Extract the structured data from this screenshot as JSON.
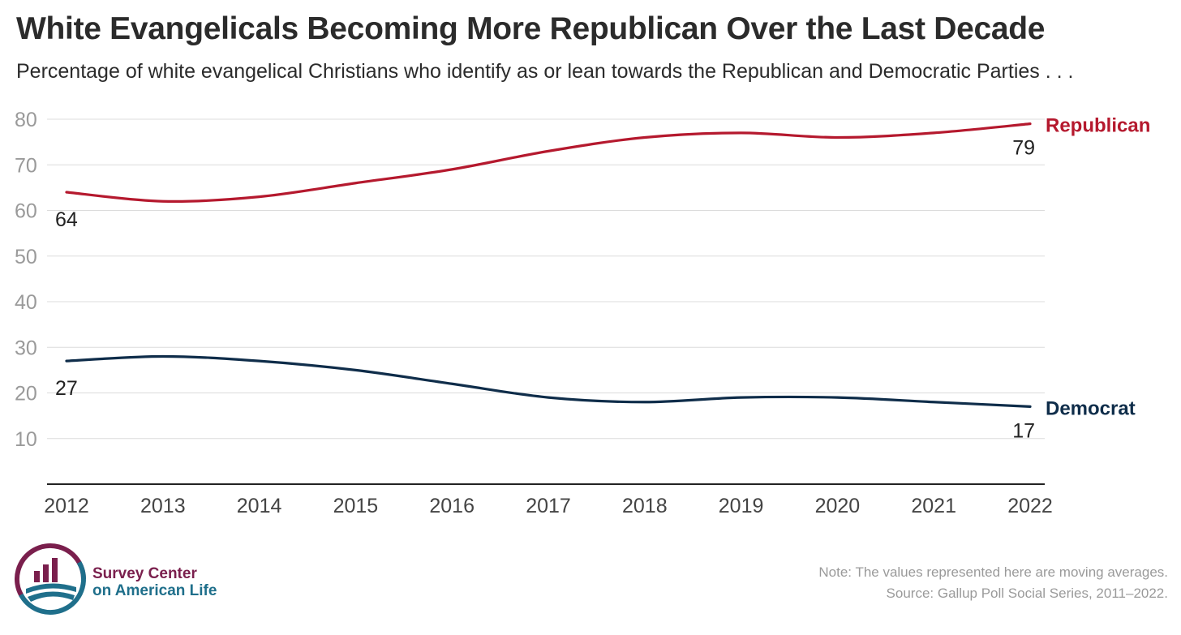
{
  "title": "White Evangelicals Becoming More Republican Over the Last Decade",
  "subtitle": "Percentage of white evangelical Christians who identify as or lean towards the Republican and Democratic Parties . . .",
  "note": "Note: The values represented here are moving averages.",
  "source": "Source: Gallup Poll Social Series, 2011–2022.",
  "logo": {
    "line1": "Survey Center",
    "line2": "on American Life"
  },
  "colors": {
    "republican": "#b5192e",
    "democrat": "#0f2d4a",
    "grid": "#dcdcdc",
    "axis": "#222222",
    "tick": "#9a9a9a"
  },
  "chart_data": {
    "type": "line",
    "x": [
      2012,
      2013,
      2014,
      2015,
      2016,
      2017,
      2018,
      2019,
      2020,
      2021,
      2022
    ],
    "ylim": [
      0,
      80
    ],
    "yticks": [
      10,
      20,
      30,
      40,
      50,
      60,
      70,
      80
    ],
    "grid": true,
    "legend": "direct labels at line ends (right)",
    "series": [
      {
        "name": "Republican",
        "color": "#b5192e",
        "values": [
          64,
          62,
          63,
          66,
          69,
          73,
          76,
          77,
          76,
          77,
          79
        ],
        "start_label": "64",
        "end_label": "79"
      },
      {
        "name": "Democrat",
        "color": "#0f2d4a",
        "values": [
          27,
          28,
          27,
          25,
          22,
          19,
          18,
          19,
          19,
          18,
          17
        ],
        "start_label": "27",
        "end_label": "17"
      }
    ]
  }
}
